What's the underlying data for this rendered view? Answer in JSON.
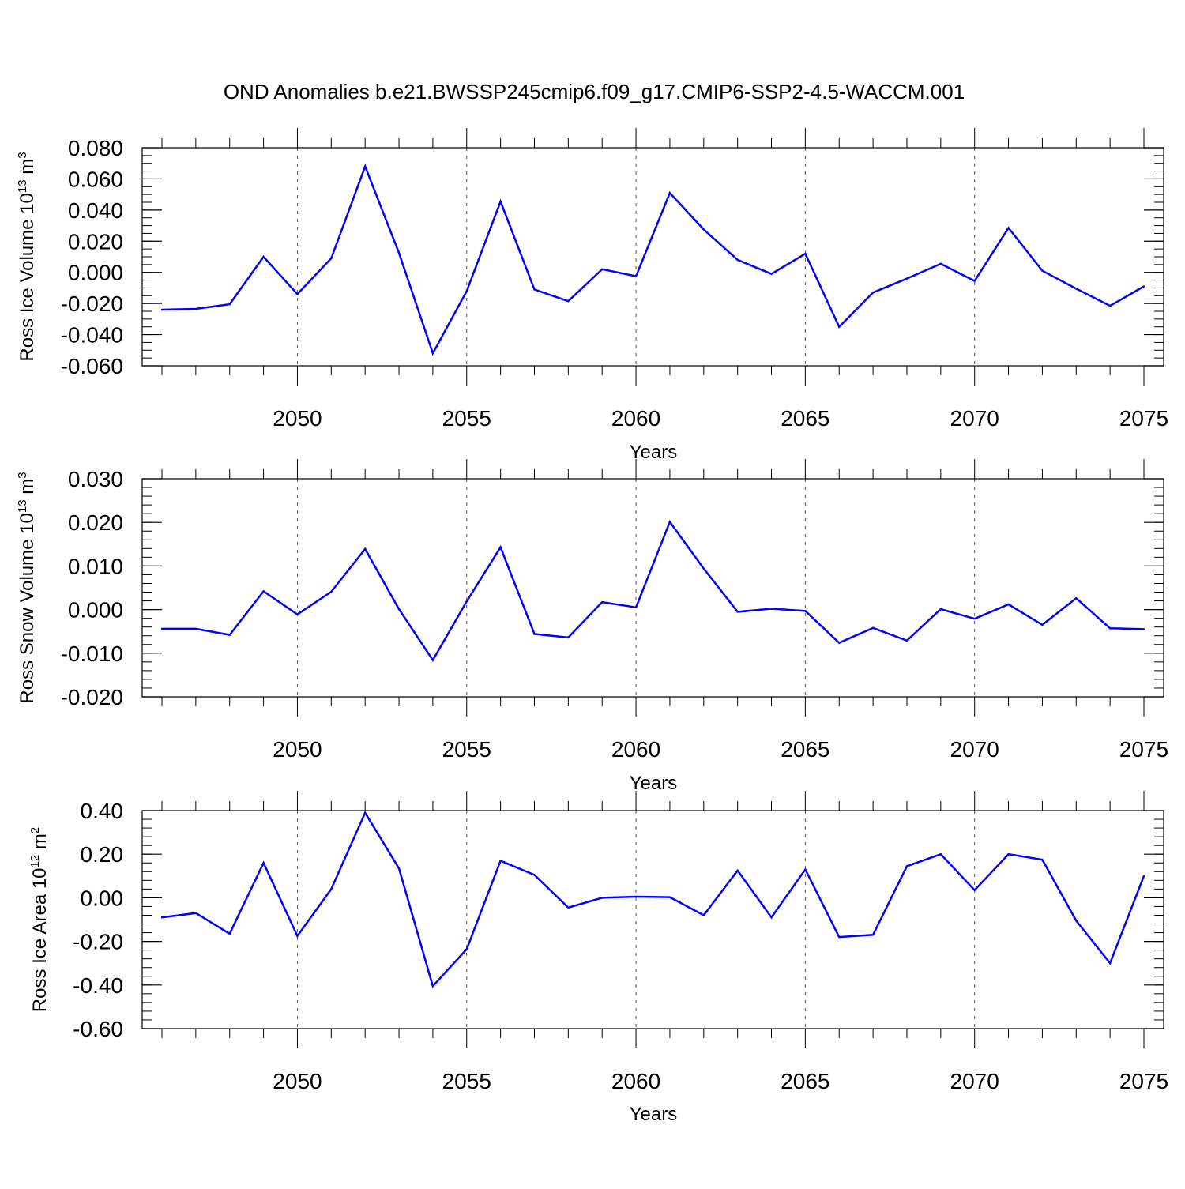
{
  "title": "OND Anomalies b.e21.BWSSP245cmip6.f09_g17.CMIP6-SSP2-4.5-WACCM.001",
  "colors": {
    "line": "#0000ff",
    "axis": "#000000",
    "grid": "#555555"
  },
  "chart_data": [
    {
      "type": "line",
      "ylabel": {
        "main": "Ross Ice Volume 10",
        "sup": "13",
        "unit": " m",
        "unit_sup": "3"
      },
      "xlabel": "Years",
      "xlim": [
        2046,
        2075
      ],
      "ylim": [
        -0.06,
        0.08
      ],
      "xticks": [
        2050,
        2055,
        2060,
        2065,
        2070,
        2075
      ],
      "xtick_labels": [
        "2050",
        "2055",
        "2060",
        "2065",
        "2070",
        "2075"
      ],
      "yticks": [
        -0.06,
        -0.04,
        -0.02,
        0.0,
        0.02,
        0.04,
        0.06,
        0.08
      ],
      "ytick_labels": [
        "-0.060",
        "-0.040",
        "-0.020",
        "0.000",
        "0.020",
        "0.040",
        "0.060",
        "0.080"
      ],
      "ytick_minor_step": 0.005,
      "grid": "dashed vertical at major x ticks",
      "x": [
        2046,
        2047,
        2048,
        2049,
        2050,
        2051,
        2052,
        2053,
        2054,
        2055,
        2056,
        2057,
        2058,
        2059,
        2060,
        2061,
        2062,
        2063,
        2064,
        2065,
        2066,
        2067,
        2068,
        2069,
        2070,
        2071,
        2072,
        2073,
        2074,
        2075
      ],
      "y": [
        -0.024,
        -0.0235,
        -0.0205,
        0.01,
        -0.014,
        0.009,
        0.068,
        0.0125,
        -0.052,
        -0.012,
        0.0455,
        -0.011,
        -0.0185,
        0.002,
        -0.0025,
        0.051,
        0.0275,
        0.008,
        -0.001,
        0.012,
        -0.035,
        -0.013,
        -0.004,
        0.0055,
        -0.0055,
        0.0285,
        0.001,
        -0.0105,
        -0.0215,
        -0.009
      ]
    },
    {
      "type": "line",
      "ylabel": {
        "main": "Ross Snow Volume 10",
        "sup": "13",
        "unit": " m",
        "unit_sup": "3"
      },
      "xlabel": "Years",
      "xlim": [
        2046,
        2075
      ],
      "ylim": [
        -0.02,
        0.03
      ],
      "xticks": [
        2050,
        2055,
        2060,
        2065,
        2070,
        2075
      ],
      "xtick_labels": [
        "2050",
        "2055",
        "2060",
        "2065",
        "2070",
        "2075"
      ],
      "yticks": [
        -0.02,
        -0.01,
        0.0,
        0.01,
        0.02,
        0.03
      ],
      "ytick_labels": [
        "-0.020",
        "-0.010",
        "0.000",
        "0.010",
        "0.020",
        "0.030"
      ],
      "ytick_minor_step": 0.002,
      "grid": "dashed vertical at major x ticks",
      "x": [
        2046,
        2047,
        2048,
        2049,
        2050,
        2051,
        2052,
        2053,
        2054,
        2055,
        2056,
        2057,
        2058,
        2059,
        2060,
        2061,
        2062,
        2063,
        2064,
        2065,
        2066,
        2067,
        2068,
        2069,
        2070,
        2071,
        2072,
        2073,
        2074,
        2075
      ],
      "y": [
        -0.0044,
        -0.0044,
        -0.0058,
        0.0042,
        -0.0011,
        0.0041,
        0.0139,
        0.0001,
        -0.0116,
        0.0019,
        0.0143,
        -0.0056,
        -0.0064,
        0.0017,
        0.0005,
        0.0201,
        0.0094,
        -0.0005,
        0.0002,
        -0.0003,
        -0.0076,
        -0.0042,
        -0.0071,
        0.0001,
        -0.0021,
        0.0012,
        -0.0035,
        0.0026,
        -0.0043,
        -0.0045
      ]
    },
    {
      "type": "line",
      "ylabel": {
        "main": "Ross Ice Area 10",
        "sup": "12",
        "unit": " m",
        "unit_sup": "2"
      },
      "xlabel": "Years",
      "xlim": [
        2046,
        2075
      ],
      "ylim": [
        -0.6,
        0.4
      ],
      "xticks": [
        2050,
        2055,
        2060,
        2065,
        2070,
        2075
      ],
      "xtick_labels": [
        "2050",
        "2055",
        "2060",
        "2065",
        "2070",
        "2075"
      ],
      "yticks": [
        -0.6,
        -0.4,
        -0.2,
        0.0,
        0.2,
        0.4
      ],
      "ytick_labels": [
        "-0.60",
        "-0.40",
        "-0.20",
        "0.00",
        "0.20",
        "0.40"
      ],
      "ytick_minor_step": 0.04,
      "grid": "dashed vertical at major x ticks",
      "x": [
        2046,
        2047,
        2048,
        2049,
        2050,
        2051,
        2052,
        2053,
        2054,
        2055,
        2056,
        2057,
        2058,
        2059,
        2060,
        2061,
        2062,
        2063,
        2064,
        2065,
        2066,
        2067,
        2068,
        2069,
        2070,
        2071,
        2072,
        2073,
        2074,
        2075
      ],
      "y": [
        -0.09,
        -0.07,
        -0.165,
        0.16,
        -0.175,
        0.04,
        0.39,
        0.135,
        -0.405,
        -0.235,
        0.17,
        0.105,
        -0.045,
        0.0,
        0.005,
        0.003,
        -0.08,
        0.125,
        -0.09,
        0.13,
        -0.18,
        -0.17,
        0.145,
        0.2,
        0.035,
        0.2,
        0.175,
        -0.105,
        -0.3,
        0.1
      ]
    }
  ]
}
